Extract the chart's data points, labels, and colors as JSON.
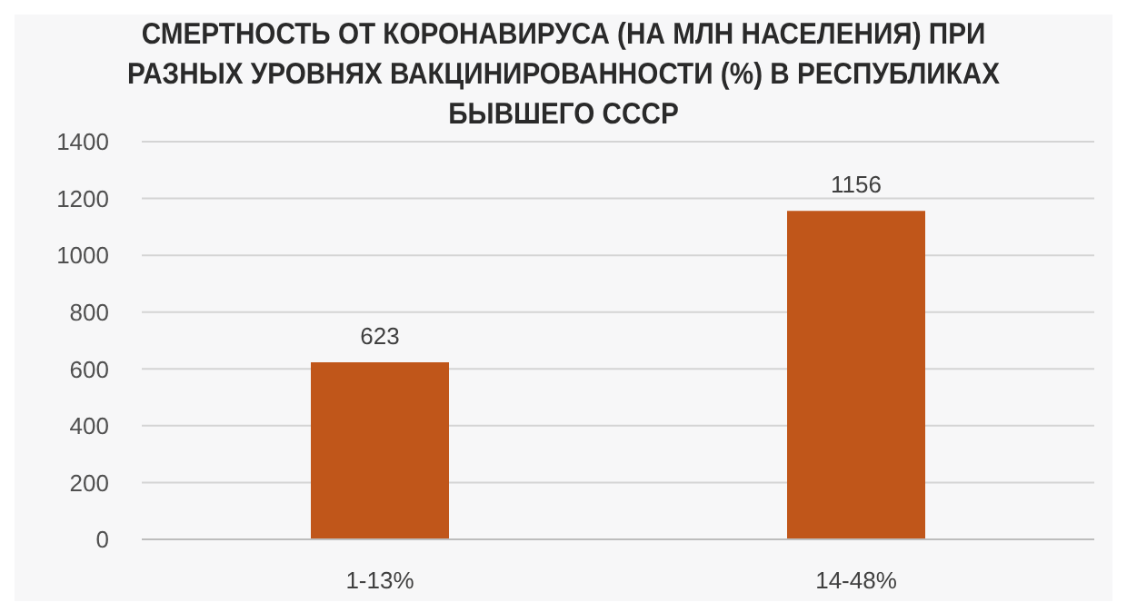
{
  "chart_data": {
    "type": "bar",
    "title": "СМЕРТНОСТЬ ОТ КОРОНАВИРУСА (НА МЛН НАСЕЛЕНИЯ) ПРИ РАЗНЫХ УРОВНЯХ ВАКЦИНИРОВАННОСТИ (%) В РЕСПУБЛИКАХ БЫВШЕГО СССР",
    "categories": [
      "1-13%",
      "14-48%"
    ],
    "values": [
      623,
      1156
    ],
    "color": "#c0561a",
    "ylim": [
      0,
      1400
    ],
    "yticks": [
      0,
      200,
      400,
      600,
      800,
      1000,
      1200,
      1400
    ],
    "grid": "y",
    "data_labels": true
  }
}
